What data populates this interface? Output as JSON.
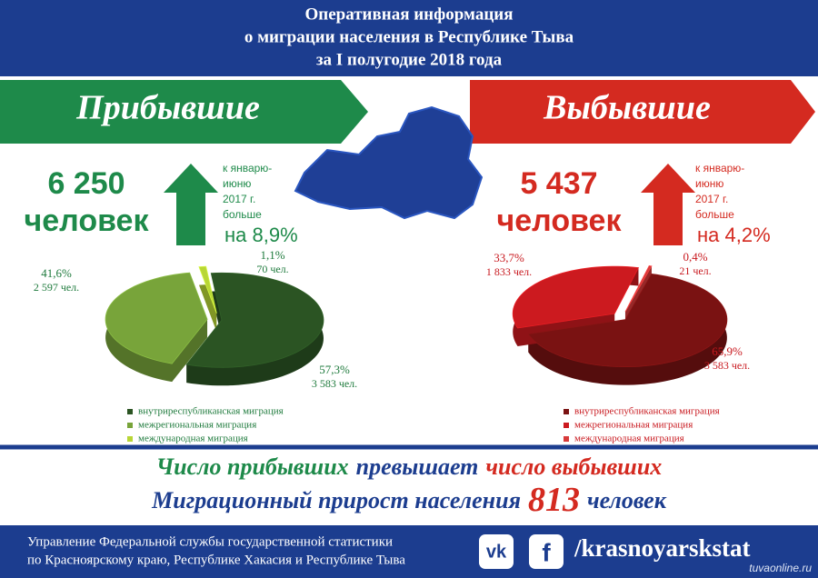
{
  "header": {
    "title_lines": [
      "Оперативная информация",
      "о миграции населения в Республике Тыва",
      "за I полугодие 2018 года"
    ]
  },
  "arrivals": {
    "banner": "Прибывшие",
    "number": "6 250",
    "unit": "человек",
    "note_lines": [
      "к январю-",
      "июню",
      "2017 г.",
      "больше"
    ],
    "change": "на 8,9%",
    "color": "#1e8a4a"
  },
  "departures": {
    "banner": "Выбывшие",
    "number": "5 437",
    "unit": "человек",
    "note_lines": [
      "к январю-",
      "июню",
      "2017 г.",
      "больше"
    ],
    "change": "на 4,2%",
    "color": "#d42a20"
  },
  "chart_data": [
    {
      "type": "pie",
      "categories": [
        "внутриреспубликанская миграция",
        "межрегиональная миграция",
        "международная миграция"
      ],
      "values": [
        57.3,
        41.6,
        1.1
      ],
      "value_labels": [
        "57,3%",
        "41,6%",
        "1,1%"
      ],
      "count_labels": [
        "3 583 чел.",
        "2 597 чел.",
        "70 чел."
      ],
      "colors": [
        "#2b5423",
        "#78a43a",
        "#b8d636"
      ],
      "label_color": "#1e7a3c"
    },
    {
      "type": "pie",
      "categories": [
        "внутриреспубликанская миграция",
        "межрегиональная миграция",
        "международная миграция"
      ],
      "values": [
        65.9,
        33.7,
        0.4
      ],
      "value_labels": [
        "65,9%",
        "33,7%",
        "0,4%"
      ],
      "count_labels": [
        "3 583 чел.",
        "1 833 чел.",
        "21 чел."
      ],
      "colors": [
        "#7a1212",
        "#cc1a1f",
        "#d83a3a"
      ],
      "label_color": "#c8181e"
    }
  ],
  "summary": {
    "line1": [
      {
        "text": "Число прибывших",
        "color": "#1e8a4a"
      },
      {
        "text": "превышает",
        "color": "#1c3d8f"
      },
      {
        "text": "число выбывших",
        "color": "#d42a20"
      }
    ],
    "line2_before": "Миграционный прирост населения",
    "line2_number": 813,
    "line2_after": "человек"
  },
  "footer": {
    "org_lines": [
      "Управление Федеральной службы государственной статистики",
      "по Красноярскому краю, Республике Хакасия и Республике Тыва"
    ],
    "social_icons": [
      "vk",
      "f"
    ],
    "social": "/krasnoyarskstat",
    "watermark": "tuvaonline.ru"
  }
}
